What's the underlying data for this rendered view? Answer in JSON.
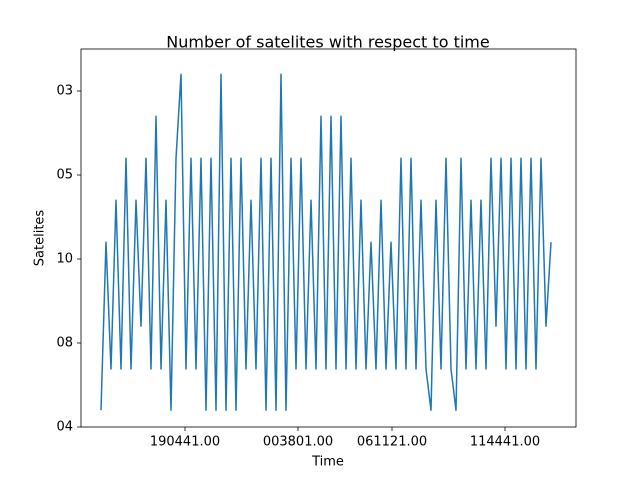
{
  "chart_data": {
    "type": "line",
    "title": "Number of satelites with respect to time",
    "x_label": "Time",
    "y_label": "Satelites",
    "series": [
      {
        "name": "Satelites",
        "color": "#1f77b4",
        "values": [
          0.2,
          2.2,
          0.69,
          2.7,
          0.69,
          3.2,
          0.69,
          2.7,
          1.2,
          3.2,
          0.69,
          3.7,
          0.69,
          2.7,
          0.2,
          3.2,
          4.2,
          0.69,
          3.2,
          0.69,
          3.2,
          0.2,
          3.2,
          0.2,
          4.2,
          0.2,
          3.2,
          0.2,
          3.2,
          0.69,
          2.7,
          0.69,
          3.2,
          0.2,
          3.2,
          0.2,
          4.2,
          0.2,
          3.2,
          0.69,
          3.2,
          0.69,
          2.7,
          0.69,
          3.7,
          0.69,
          3.7,
          0.69,
          3.7,
          0.69,
          3.2,
          0.69,
          2.7,
          0.69,
          2.2,
          0.69,
          2.7,
          0.69,
          2.2,
          0.69,
          3.2,
          0.69,
          3.2,
          0.69,
          2.7,
          0.69,
          0.2,
          2.7,
          0.69,
          3.2,
          0.69,
          0.2,
          3.2,
          0.69,
          2.7,
          0.69,
          2.7,
          0.69,
          3.2,
          1.2,
          3.2,
          0.69,
          3.2,
          0.69,
          3.2,
          0.69,
          3.2,
          0.69,
          3.2,
          1.2,
          2.2
        ]
      }
    ],
    "xlim": [
      -4,
      95
    ],
    "xticks": [
      {
        "value": 16.8,
        "label": "190441.00"
      },
      {
        "value": 39.4,
        "label": "003801.00"
      },
      {
        "value": 58.2,
        "label": "061121.00"
      },
      {
        "value": 80.8,
        "label": "114441.00"
      }
    ],
    "ylim": [
      0,
      4.5
    ],
    "yticks": [
      {
        "value": 0,
        "label": "04"
      },
      {
        "value": 1,
        "label": "08"
      },
      {
        "value": 2,
        "label": "10"
      },
      {
        "value": 3,
        "label": "05"
      },
      {
        "value": 4,
        "label": "03"
      }
    ]
  }
}
